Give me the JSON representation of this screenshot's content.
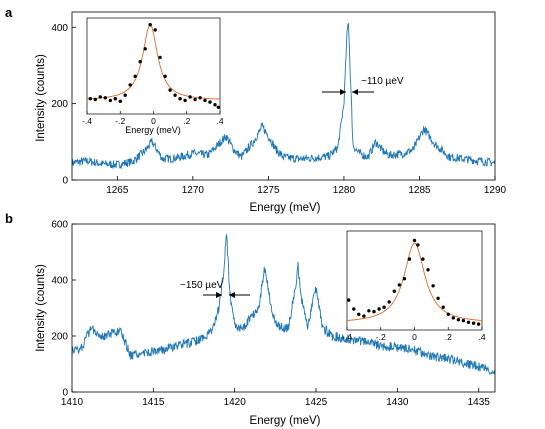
{
  "panels": [
    {
      "label": "a",
      "chart_data": {
        "type": "line",
        "xlabel": "Energy (meV)",
        "ylabel": "Intensity (counts)",
        "xlim": [
          1262,
          1290
        ],
        "ylim": [
          0,
          440
        ],
        "xticks": [
          1265,
          1270,
          1275,
          1280,
          1285,
          1290
        ],
        "yticks": [
          0,
          200,
          400
        ],
        "grid": false,
        "series": [
          {
            "color": "#1f77b4",
            "x": [
              1262,
              1263,
              1264,
              1265,
              1266,
              1266.8,
              1267.3,
              1268,
              1269,
              1270,
              1271,
              1271.5,
              1272.2,
              1272.7,
              1273.2,
              1274,
              1274.6,
              1275,
              1275.5,
              1276,
              1277,
              1278,
              1279,
              1279.6,
              1280,
              1280.2,
              1280.3,
              1280.4,
              1280.6,
              1281,
              1281.6,
              1282.1,
              1282.6,
              1283,
              1284,
              1284.6,
              1285.3,
              1286,
              1287,
              1288,
              1289,
              1290
            ],
            "y": [
              45,
              50,
              42,
              40,
              48,
              75,
              100,
              55,
              58,
              70,
              65,
              85,
              115,
              80,
              60,
              100,
              140,
              115,
              80,
              60,
              55,
              58,
              62,
              85,
              200,
              380,
              420,
              300,
              90,
              70,
              60,
              100,
              75,
              65,
              70,
              80,
              135,
              95,
              60,
              55,
              50,
              45
            ]
          }
        ],
        "annotation": {
          "text": "~110 µeV",
          "at_x": 1280.3,
          "at_y": 200
        },
        "inset": {
          "xlabel": "Energy (meV)",
          "xlim": [
            -0.4,
            0.4
          ],
          "xticks": [
            -0.4,
            -0.2,
            0,
            0.2,
            0.4
          ],
          "points": {
            "x": [
              -0.38,
              -0.35,
              -0.32,
              -0.29,
              -0.26,
              -0.23,
              -0.2,
              -0.17,
              -0.14,
              -0.11,
              -0.08,
              -0.05,
              -0.02,
              0.01,
              0.04,
              0.07,
              0.1,
              0.13,
              0.16,
              0.19,
              0.22,
              0.25,
              0.28,
              0.31,
              0.34,
              0.37,
              0.39
            ],
            "y": [
              0.12,
              0.11,
              0.14,
              0.13,
              0.1,
              0.12,
              0.09,
              0.16,
              0.28,
              0.38,
              0.55,
              0.7,
              0.98,
              0.92,
              0.6,
              0.38,
              0.22,
              0.16,
              0.12,
              0.1,
              0.14,
              0.11,
              0.13,
              0.1,
              0.08,
              0.05,
              0.02
            ]
          },
          "fit": {
            "center": -0.02,
            "fwhm": 0.11,
            "baseline": 0.1,
            "amplitude": 0.88,
            "color": "#e06a2a"
          }
        }
      }
    },
    {
      "label": "b",
      "chart_data": {
        "type": "line",
        "xlabel": "Energy (meV)",
        "ylabel": "Intensity (counts)",
        "xlim": [
          1410,
          1436
        ],
        "ylim": [
          0,
          600
        ],
        "xticks": [
          1410,
          1415,
          1420,
          1425,
          1430,
          1435
        ],
        "yticks": [
          0,
          200,
          400,
          600
        ],
        "grid": false,
        "series": [
          {
            "color": "#1f77b4",
            "x": [
              1410,
              1410.6,
              1411.2,
              1411.8,
              1412.4,
              1413,
              1413.6,
              1414.5,
              1415.5,
              1416.5,
              1417.5,
              1418.5,
              1419,
              1419.3,
              1419.5,
              1419.7,
              1420,
              1420.5,
              1421,
              1421.5,
              1421.8,
              1422,
              1422.3,
              1422.8,
              1423.3,
              1423.7,
              1423.9,
              1424.1,
              1424.5,
              1424.8,
              1425,
              1425.4,
              1426,
              1427,
              1428,
              1429,
              1430,
              1431,
              1432,
              1433,
              1434,
              1435,
              1436
            ],
            "y": [
              145,
              160,
              230,
              200,
              205,
              215,
              130,
              140,
              150,
              165,
              180,
              210,
              290,
              420,
              570,
              350,
              240,
              225,
              270,
              300,
              440,
              400,
              270,
              230,
              230,
              360,
              450,
              330,
              230,
              330,
              370,
              230,
              200,
              190,
              180,
              165,
              160,
              150,
              130,
              120,
              105,
              90,
              70
            ]
          }
        ],
        "annotation": {
          "text": "~150 µeV",
          "at_x": 1419.5,
          "at_y": 340
        },
        "inset": {
          "xlabel": "",
          "xlim": [
            -0.4,
            0.4
          ],
          "xticks": [
            -0.4,
            -0.2,
            0,
            0.2,
            0.4
          ],
          "points": {
            "x": [
              -0.39,
              -0.36,
              -0.33,
              -0.3,
              -0.27,
              -0.24,
              -0.21,
              -0.18,
              -0.15,
              -0.12,
              -0.09,
              -0.06,
              -0.03,
              0,
              0.02,
              0.05,
              0.08,
              0.11,
              0.14,
              0.17,
              0.2,
              0.23,
              0.26,
              0.29,
              0.32,
              0.35,
              0.38
            ],
            "y": [
              0.28,
              0.18,
              0.12,
              0.1,
              0.16,
              0.15,
              0.18,
              0.2,
              0.26,
              0.38,
              0.45,
              0.52,
              0.74,
              0.95,
              0.9,
              0.74,
              0.62,
              0.44,
              0.3,
              0.2,
              0.12,
              0.08,
              0.06,
              0.05,
              0.03,
              0.02,
              0.01
            ]
          },
          "fit": {
            "center": 0.0,
            "fwhm": 0.15,
            "baseline": 0.02,
            "amplitude": 0.9,
            "color": "#e06a2a"
          }
        }
      }
    }
  ]
}
